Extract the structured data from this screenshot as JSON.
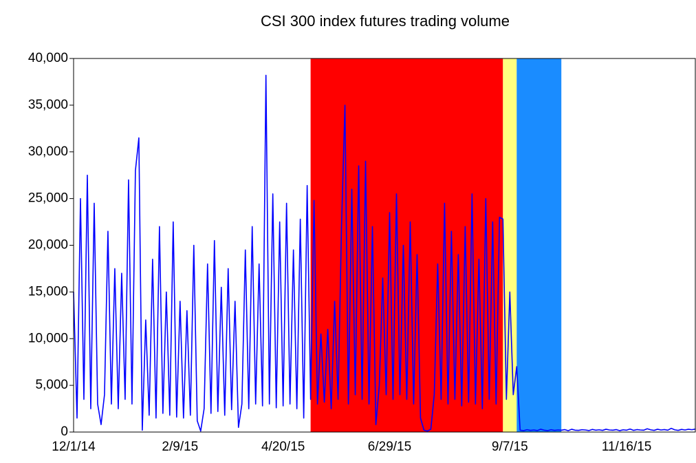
{
  "chart_data": {
    "type": "line",
    "title": "CSI 300 index futures trading volume",
    "categories": [
      "12/1/14",
      null,
      null,
      null,
      null,
      null,
      null,
      null,
      null,
      null,
      null,
      null,
      null,
      null,
      null,
      null,
      null,
      null,
      null,
      null,
      null,
      null,
      null,
      null,
      null,
      null,
      null,
      null,
      null,
      null,
      null,
      "2/9/15",
      null,
      null,
      null,
      null,
      null,
      null,
      null,
      null,
      null,
      null,
      null,
      null,
      null,
      null,
      null,
      null,
      null,
      null,
      null,
      null,
      null,
      null,
      null,
      null,
      null,
      null,
      null,
      null,
      null,
      "4/20/15",
      null,
      null,
      null,
      null,
      null,
      null,
      null,
      null,
      null,
      null,
      null,
      null,
      null,
      null,
      null,
      null,
      null,
      null,
      null,
      null,
      null,
      null,
      null,
      null,
      null,
      null,
      null,
      null,
      null,
      null,
      "6/29/15",
      null,
      null,
      null,
      null,
      null,
      null,
      null,
      null,
      null,
      null,
      null,
      null,
      null,
      null,
      null,
      null,
      null,
      null,
      null,
      null,
      null,
      null,
      null,
      null,
      null,
      null,
      null,
      null,
      null,
      null,
      null,
      null,
      null,
      null,
      "9/7/15",
      null,
      null,
      null,
      null,
      null,
      null,
      null,
      null,
      null,
      null,
      null,
      null,
      null,
      null,
      null,
      null,
      null,
      null,
      null,
      null,
      null,
      null,
      null,
      null,
      null,
      null,
      null,
      null,
      null,
      null,
      null,
      null,
      null,
      "11/16/15",
      null,
      null,
      null,
      null,
      null,
      null,
      null,
      null,
      null,
      null,
      null,
      null,
      null,
      null,
      null,
      null,
      null,
      null,
      null,
      null
    ],
    "series": [
      {
        "color": "#0000ff",
        "values": [
          15000,
          1500,
          25000,
          3500,
          27500,
          2500,
          24500,
          3000,
          800,
          4000,
          21500,
          3000,
          17500,
          2500,
          17000,
          3500,
          27000,
          3000,
          28000,
          31500,
          200,
          12000,
          1800,
          18500,
          1500,
          22000,
          2000,
          15000,
          1800,
          22500,
          1600,
          14000,
          1500,
          13000,
          1800,
          20000,
          1200,
          100,
          2500,
          18000,
          2000,
          20500,
          2200,
          15500,
          1800,
          17500,
          2400,
          14000,
          500,
          3000,
          19500,
          2500,
          22000,
          3000,
          18000,
          2800,
          38200,
          3000,
          25500,
          2600,
          22500,
          2800,
          24500,
          3000,
          19500,
          2500,
          22800,
          1500,
          26400,
          3500,
          24800,
          3000,
          10500,
          3200,
          11000,
          2500,
          14000,
          3500,
          22000,
          35000,
          3000,
          26000,
          4000,
          28500,
          3500,
          29000,
          3000,
          22000,
          800,
          5000,
          16500,
          4000,
          23500,
          3500,
          25500,
          4000,
          20000,
          3500,
          22500,
          3000,
          19000,
          1500,
          200,
          100,
          300,
          4000,
          18000,
          3500,
          24500,
          3000,
          21500,
          3500,
          19000,
          2800,
          22000,
          3200,
          25500,
          3000,
          18500,
          2500,
          25000,
          3500,
          22500,
          3000,
          23000,
          22800,
          3500,
          15000,
          4000,
          7000,
          200,
          150,
          250,
          180,
          220,
          160,
          300,
          200,
          150,
          250,
          180,
          220,
          200,
          260,
          150,
          300,
          200,
          180,
          250,
          220,
          160,
          280,
          200,
          240,
          180,
          300,
          220,
          200,
          260,
          150,
          240,
          200,
          320,
          180,
          260,
          220,
          200,
          350,
          240,
          180,
          300,
          220,
          260,
          200,
          400,
          240,
          180,
          280,
          220,
          300,
          250,
          320
        ]
      }
    ],
    "shaded_regions": [
      {
        "start": 69,
        "end": 125,
        "color": "#ff0000"
      },
      {
        "start": 125,
        "end": 129,
        "color": "#ffff80"
      },
      {
        "start": 129,
        "end": 142,
        "color": "#1a8cff"
      }
    ],
    "ylim": [
      0,
      40000
    ],
    "yticks": [
      0,
      {
        "value": 5000,
        "label": "5,000"
      },
      {
        "value": 10000,
        "label": "10,000"
      },
      {
        "value": 15000,
        "label": "15,000"
      },
      {
        "value": 20000,
        "label": "20,000"
      },
      {
        "value": 25000,
        "label": "25,000"
      },
      {
        "value": 30000,
        "label": "30,000"
      },
      {
        "value": 35000,
        "label": "35,000"
      },
      {
        "value": 40000,
        "label": "40,000"
      }
    ],
    "grid": false
  }
}
